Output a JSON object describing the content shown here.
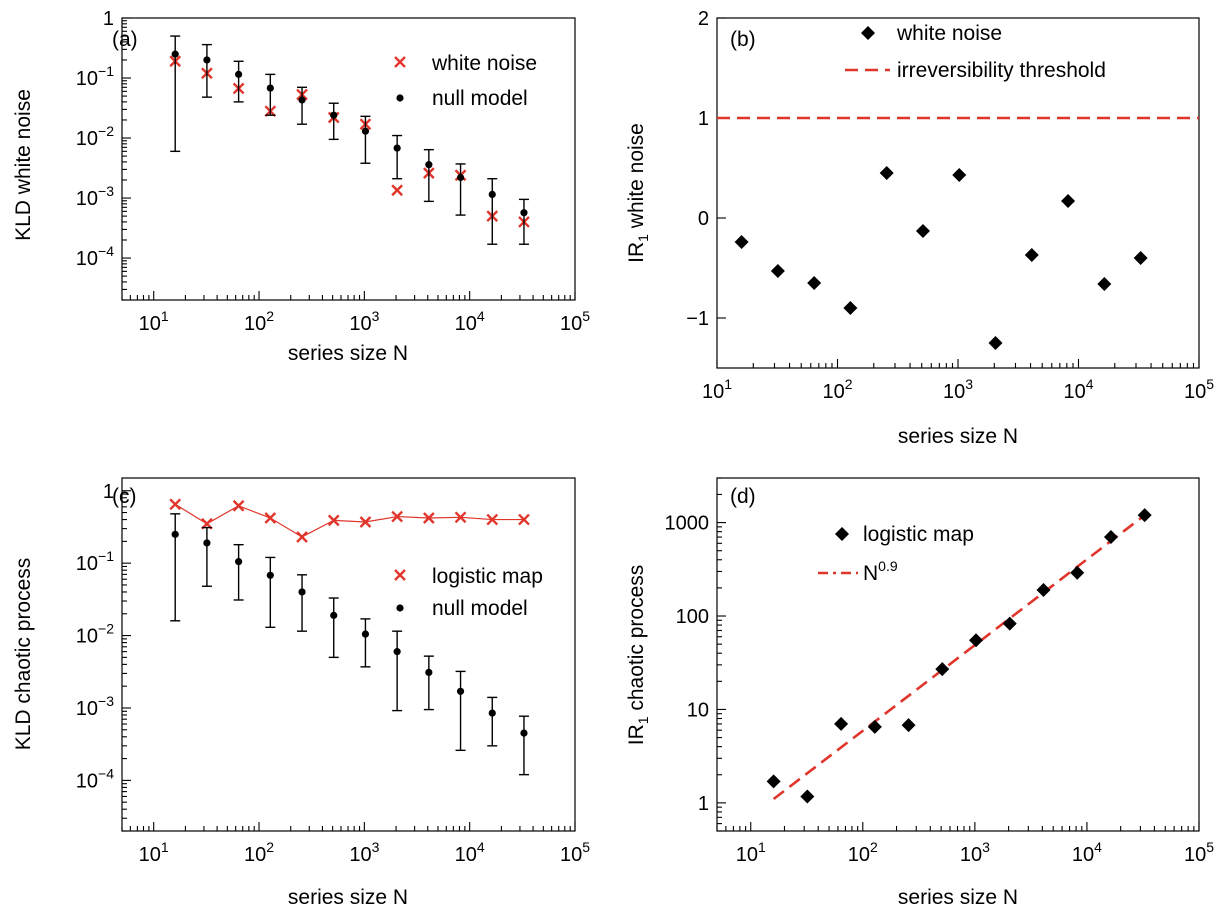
{
  "colors": {
    "red": "#e0352b",
    "black": "#000000"
  },
  "chart_data": [
    {
      "panel_label": "(a)",
      "type": "scatter",
      "xscale": "log",
      "yscale": "log",
      "xlim": [
        5,
        100000
      ],
      "ylim": [
        2e-05,
        1
      ],
      "xlabel": "series size N",
      "ylabel": "KLD white noise",
      "xticks": [
        {
          "v": 10,
          "base": "10",
          "exp": "1"
        },
        {
          "v": 100,
          "base": "10",
          "exp": "2"
        },
        {
          "v": 1000,
          "base": "10",
          "exp": "3"
        },
        {
          "v": 10000,
          "base": "10",
          "exp": "4"
        },
        {
          "v": 100000,
          "base": "10",
          "exp": "5"
        }
      ],
      "yticks": [
        {
          "v": 1,
          "base": "1",
          "exp": ""
        },
        {
          "v": 0.1,
          "base": "10",
          "exp": "−1"
        },
        {
          "v": 0.01,
          "base": "10",
          "exp": "−2"
        },
        {
          "v": 0.001,
          "base": "10",
          "exp": "−3"
        },
        {
          "v": 0.0001,
          "base": "10",
          "exp": "−4"
        }
      ],
      "legend": {
        "position": "top-right",
        "entries": [
          "white noise",
          "null model"
        ]
      },
      "series": [
        {
          "name": "white noise",
          "marker": "x",
          "color": "#e0352b",
          "connect": false,
          "x": [
            16,
            32,
            64,
            128,
            256,
            512,
            1024,
            2048,
            4096,
            8192,
            16384,
            32768
          ],
          "y": [
            0.19,
            0.12,
            0.067,
            0.028,
            0.053,
            0.022,
            0.017,
            0.00135,
            0.0026,
            0.0024,
            0.0005,
            0.0004
          ]
        },
        {
          "name": "null model",
          "marker": "dot",
          "color": "#000000",
          "connect": false,
          "x": [
            16,
            32,
            64,
            128,
            256,
            512,
            1024,
            2048,
            4096,
            8192,
            16384,
            32768
          ],
          "y": [
            0.25,
            0.2,
            0.115,
            0.068,
            0.043,
            0.024,
            0.013,
            0.0068,
            0.0036,
            0.0022,
            0.00115,
            0.00057
          ],
          "err_low": [
            0.006,
            0.048,
            0.04,
            0.024,
            0.017,
            0.0095,
            0.0038,
            0.0021,
            0.00088,
            0.00052,
            0.00017,
            0.00017
          ],
          "err_high": [
            0.5,
            0.36,
            0.19,
            0.115,
            0.07,
            0.038,
            0.023,
            0.011,
            0.0064,
            0.0037,
            0.0021,
            0.00095
          ]
        }
      ]
    },
    {
      "panel_label": "(b)",
      "type": "scatter",
      "xscale": "log",
      "yscale": "linear",
      "xlim": [
        10,
        100000
      ],
      "ylim": [
        -1.5,
        2
      ],
      "xlabel": "series size N",
      "ylabel_main": "IR",
      "ylabel_sub": "1",
      "ylabel_rest": " white noise",
      "xticks": [
        {
          "v": 10,
          "base": "10",
          "exp": "1"
        },
        {
          "v": 100,
          "base": "10",
          "exp": "2"
        },
        {
          "v": 1000,
          "base": "10",
          "exp": "3"
        },
        {
          "v": 10000,
          "base": "10",
          "exp": "4"
        },
        {
          "v": 100000,
          "base": "10",
          "exp": "5"
        }
      ],
      "yticks": [
        {
          "v": 2,
          "base": "2",
          "exp": ""
        },
        {
          "v": 1,
          "base": "1",
          "exp": ""
        },
        {
          "v": 0,
          "base": "0",
          "exp": ""
        },
        {
          "v": -1,
          "base": "−1",
          "exp": ""
        }
      ],
      "legend": {
        "position": "top-center",
        "entries": [
          "white noise",
          "irreversibility threshold"
        ]
      },
      "series": [
        {
          "name": "white noise",
          "marker": "diamond",
          "color": "#000000",
          "connect": false,
          "x": [
            16,
            32,
            64,
            128,
            256,
            512,
            1024,
            2048,
            4096,
            8192,
            16384,
            32768
          ],
          "y": [
            -0.24,
            -0.53,
            -0.65,
            -0.9,
            0.45,
            -0.13,
            0.43,
            -1.25,
            -0.37,
            0.17,
            -0.66,
            -0.4
          ]
        }
      ],
      "hline": {
        "name": "irreversibility threshold",
        "y": 1,
        "color": "#e0352b",
        "dash": true
      }
    },
    {
      "panel_label": "(c)",
      "type": "scatter",
      "xscale": "log",
      "yscale": "log",
      "xlim": [
        5,
        100000
      ],
      "ylim": [
        2e-05,
        1.5
      ],
      "xlabel": "series size N",
      "ylabel": "KLD chaotic process",
      "xticks": [
        {
          "v": 10,
          "base": "10",
          "exp": "1"
        },
        {
          "v": 100,
          "base": "10",
          "exp": "2"
        },
        {
          "v": 1000,
          "base": "10",
          "exp": "3"
        },
        {
          "v": 10000,
          "base": "10",
          "exp": "4"
        },
        {
          "v": 100000,
          "base": "10",
          "exp": "5"
        }
      ],
      "yticks": [
        {
          "v": 1,
          "base": "1",
          "exp": ""
        },
        {
          "v": 0.1,
          "base": "10",
          "exp": "−1"
        },
        {
          "v": 0.01,
          "base": "10",
          "exp": "−2"
        },
        {
          "v": 0.001,
          "base": "10",
          "exp": "−3"
        },
        {
          "v": 0.0001,
          "base": "10",
          "exp": "−4"
        }
      ],
      "legend": {
        "position": "right",
        "entries": [
          "logistic map",
          "null model"
        ]
      },
      "series": [
        {
          "name": "logistic map",
          "marker": "x",
          "color": "#e0352b",
          "connect": true,
          "x": [
            16,
            32,
            64,
            128,
            256,
            512,
            1024,
            2048,
            4096,
            8192,
            16384,
            32768
          ],
          "y": [
            0.65,
            0.35,
            0.62,
            0.42,
            0.23,
            0.39,
            0.37,
            0.44,
            0.42,
            0.43,
            0.4,
            0.4
          ]
        },
        {
          "name": "null model",
          "marker": "dot",
          "color": "#000000",
          "connect": false,
          "x": [
            16,
            32,
            64,
            128,
            256,
            512,
            1024,
            2048,
            4096,
            8192,
            16384,
            32768
          ],
          "y": [
            0.25,
            0.19,
            0.105,
            0.068,
            0.04,
            0.019,
            0.0105,
            0.006,
            0.0031,
            0.0017,
            0.00085,
            0.00045
          ],
          "err_low": [
            0.016,
            0.048,
            0.031,
            0.013,
            0.0115,
            0.005,
            0.0037,
            0.00092,
            0.00095,
            0.00026,
            0.0003,
            0.00012
          ],
          "err_high": [
            0.48,
            0.31,
            0.18,
            0.12,
            0.069,
            0.033,
            0.017,
            0.0115,
            0.0052,
            0.0032,
            0.0014,
            0.00077
          ]
        }
      ]
    },
    {
      "panel_label": "(d)",
      "type": "scatter",
      "xscale": "log",
      "yscale": "log",
      "xlim": [
        5,
        100000
      ],
      "ylim": [
        0.5,
        3000
      ],
      "xlabel": "series size N",
      "ylabel_main": "IR",
      "ylabel_sub": "1",
      "ylabel_rest": " chaotic process",
      "xticks": [
        {
          "v": 10,
          "base": "10",
          "exp": "1"
        },
        {
          "v": 100,
          "base": "10",
          "exp": "2"
        },
        {
          "v": 1000,
          "base": "10",
          "exp": "3"
        },
        {
          "v": 10000,
          "base": "10",
          "exp": "4"
        },
        {
          "v": 100000,
          "base": "10",
          "exp": "5"
        }
      ],
      "yticks": [
        {
          "v": 1000,
          "base": "1000",
          "exp": ""
        },
        {
          "v": 100,
          "base": "100",
          "exp": ""
        },
        {
          "v": 10,
          "base": "10",
          "exp": ""
        },
        {
          "v": 1,
          "base": "1",
          "exp": ""
        }
      ],
      "legend": {
        "position": "top-left",
        "entries": [
          "logistic map",
          "N",
          "0.9"
        ]
      },
      "series": [
        {
          "name": "logistic map",
          "marker": "diamond",
          "color": "#000000",
          "connect": false,
          "x": [
            16,
            32,
            64,
            128,
            256,
            512,
            1024,
            2048,
            4096,
            8192,
            16384,
            32768
          ],
          "y": [
            1.7,
            1.17,
            7,
            6.5,
            6.8,
            27,
            55,
            83,
            190,
            290,
            700,
            1200
          ]
        }
      ],
      "fit": {
        "name": "N",
        "exponent": "0.9",
        "x": [
          16,
          32768
        ],
        "y": [
          1.1,
          1200
        ],
        "color": "#e0352b",
        "dash": true
      }
    }
  ]
}
